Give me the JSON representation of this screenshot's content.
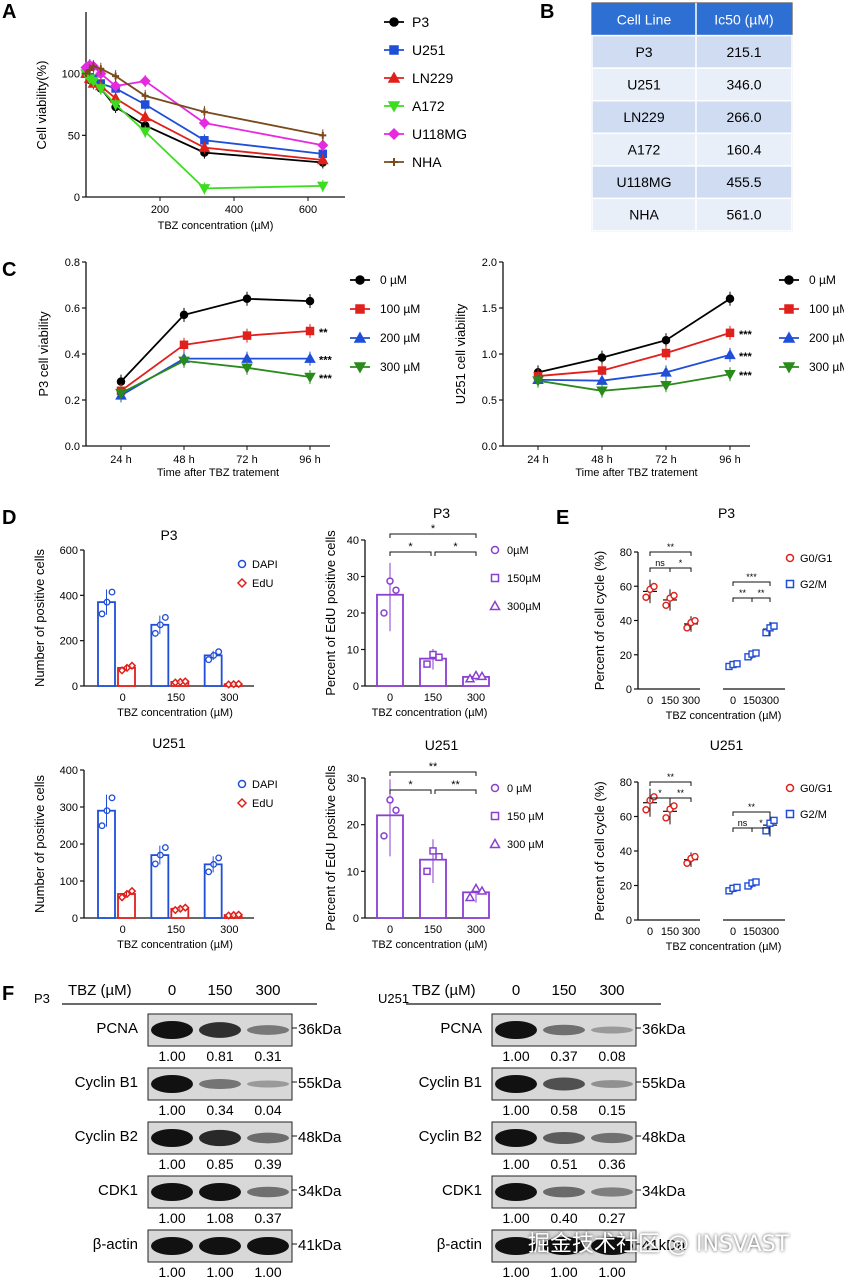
{
  "panels": [
    "A",
    "B",
    "C",
    "D",
    "E",
    "F"
  ],
  "chart_data": [
    {
      "id": "A",
      "type": "line",
      "xlabel": "TBZ concentration (µM)",
      "ylabel": "Cell viability(%)",
      "xlim": [
        0,
        700
      ],
      "ylim": [
        0,
        150
      ],
      "xticks": [
        200,
        400,
        600
      ],
      "yticks": [
        0,
        50,
        100
      ],
      "grid": false,
      "legend": "right",
      "x": [
        0,
        10,
        20,
        40,
        80,
        160,
        320,
        640
      ],
      "series": [
        {
          "name": "P3",
          "color": "#000000",
          "marker": "circle",
          "values": [
            100,
            95,
            93,
            88,
            73,
            58,
            36,
            28
          ]
        },
        {
          "name": "U251",
          "color": "#1f4ed8",
          "marker": "square",
          "values": [
            100,
            97,
            96,
            92,
            88,
            75,
            46,
            35
          ]
        },
        {
          "name": "LN229",
          "color": "#e0201b",
          "marker": "triangle-up",
          "values": [
            100,
            96,
            92,
            90,
            80,
            65,
            40,
            30
          ]
        },
        {
          "name": "A172",
          "color": "#3cdd20",
          "marker": "triangle-down",
          "values": [
            100,
            96,
            94,
            88,
            75,
            53,
            7,
            9
          ]
        },
        {
          "name": "U118MG",
          "color": "#e62ae0",
          "marker": "diamond",
          "values": [
            105,
            107,
            106,
            100,
            90,
            94,
            60,
            42
          ]
        },
        {
          "name": "NHA",
          "color": "#7a4a1c",
          "marker": "plus",
          "values": [
            100,
            103,
            106,
            104,
            98,
            82,
            69,
            50
          ]
        }
      ]
    },
    {
      "id": "B",
      "type": "table",
      "columns": [
        "Cell Line",
        "Ic50 (µM)"
      ],
      "rows": [
        [
          "P3",
          "215.1"
        ],
        [
          "U251",
          "346.0"
        ],
        [
          "LN229",
          "266.0"
        ],
        [
          "A172",
          "160.4"
        ],
        [
          "U118MG",
          "455.5"
        ],
        [
          "NHA",
          "561.0"
        ]
      ]
    },
    {
      "id": "C1",
      "type": "line",
      "xlabel": "Time after TBZ tratement",
      "ylabel": "P3 cell viability",
      "categories": [
        "24 h",
        "48 h",
        "72 h",
        "96 h"
      ],
      "ylim": [
        0,
        0.8
      ],
      "yticks": [
        "0.0",
        "0.2",
        "0.4",
        "0.6",
        "0.8"
      ],
      "legend": "right",
      "series": [
        {
          "name": "0 µM",
          "color": "#000000",
          "marker": "circle",
          "values": [
            0.28,
            0.57,
            0.64,
            0.63
          ],
          "sig": ""
        },
        {
          "name": "100 µM",
          "color": "#e0201b",
          "marker": "square",
          "values": [
            0.24,
            0.44,
            0.48,
            0.5
          ],
          "sig": "**"
        },
        {
          "name": "200 µM",
          "color": "#1f4ed8",
          "marker": "triangle-up",
          "values": [
            0.22,
            0.38,
            0.38,
            0.38
          ],
          "sig": "***"
        },
        {
          "name": "300 µM",
          "color": "#2a8a1c",
          "marker": "triangle-down",
          "values": [
            0.23,
            0.37,
            0.34,
            0.3
          ],
          "sig": "***"
        }
      ]
    },
    {
      "id": "C2",
      "type": "line",
      "xlabel": "Time after TBZ tratement",
      "ylabel": "U251 cell viability",
      "categories": [
        "24 h",
        "48 h",
        "72 h",
        "96 h"
      ],
      "ylim": [
        0,
        2
      ],
      "yticks": [
        "0.0",
        "0.5",
        "1.0",
        "1.5",
        "2.0"
      ],
      "legend": "right",
      "series": [
        {
          "name": "0 µM",
          "color": "#000000",
          "marker": "circle",
          "values": [
            0.8,
            0.96,
            1.15,
            1.6
          ],
          "sig": ""
        },
        {
          "name": "100 µM",
          "color": "#e0201b",
          "marker": "square",
          "values": [
            0.76,
            0.82,
            1.01,
            1.23
          ],
          "sig": "***"
        },
        {
          "name": "200 µM",
          "color": "#1f4ed8",
          "marker": "triangle-up",
          "values": [
            0.72,
            0.71,
            0.8,
            0.99
          ],
          "sig": "***"
        },
        {
          "name": "300 µM",
          "color": "#2a8a1c",
          "marker": "triangle-down",
          "values": [
            0.71,
            0.6,
            0.66,
            0.78
          ],
          "sig": "***"
        }
      ]
    },
    {
      "id": "D1",
      "type": "bar",
      "title": "P3",
      "xlabel": "TBZ concentration (µM)",
      "ylabel": "Number of positive cells",
      "categories": [
        "0",
        "150",
        "300"
      ],
      "ylim": [
        0,
        600
      ],
      "yticks": [
        0,
        200,
        400,
        600
      ],
      "legend": "top-right",
      "series": [
        {
          "name": "DAPI",
          "color": "#1f4ed8",
          "values": [
            370,
            270,
            135
          ]
        },
        {
          "name": "EdU",
          "color": "#e0201b",
          "values": [
            80,
            18,
            8
          ]
        }
      ]
    },
    {
      "id": "D2",
      "type": "bar",
      "title": "P3",
      "xlabel": "TBZ concentration (µM)",
      "ylabel": "Percent of EdU positive cells",
      "categories": [
        "0",
        "150",
        "300"
      ],
      "ylim": [
        0,
        40
      ],
      "yticks": [
        0,
        10,
        20,
        30,
        40
      ],
      "legend": "right",
      "legend_labels": [
        "0µM",
        "150µM",
        "300µM"
      ],
      "color": "#8a3fd1",
      "values": [
        25,
        7.5,
        2.5
      ],
      "sig": [
        "*",
        "*",
        "*"
      ]
    },
    {
      "id": "E1",
      "type": "scatter",
      "title": "P3",
      "xlabel": "TBZ concentration (µM)",
      "ylabel": "Percent of cell cycle (%)",
      "categories": [
        "0",
        "150",
        "300",
        "0",
        "150",
        "300"
      ],
      "ylim": [
        0,
        80
      ],
      "yticks": [
        0,
        20,
        40,
        60,
        80
      ],
      "legend": "right",
      "series": [
        {
          "name": "G0/G1",
          "color": "#e0201b",
          "values": [
            57,
            52,
            38
          ]
        },
        {
          "name": "G2/M",
          "color": "#1f4ed8",
          "values": [
            14,
            20,
            35
          ]
        }
      ],
      "sig_g1": [
        "ns",
        "*",
        "**"
      ],
      "sig_g2": [
        "**",
        "**",
        "***"
      ]
    },
    {
      "id": "D3",
      "type": "bar",
      "title": "U251",
      "xlabel": "TBZ concentration (µM)",
      "ylabel": "Number of positive cells",
      "categories": [
        "0",
        "150",
        "300"
      ],
      "ylim": [
        0,
        400
      ],
      "yticks": [
        0,
        100,
        200,
        300,
        400
      ],
      "legend": "top-right",
      "series": [
        {
          "name": "DAPI",
          "color": "#1f4ed8",
          "values": [
            290,
            170,
            145
          ]
        },
        {
          "name": "EdU",
          "color": "#e0201b",
          "values": [
            65,
            25,
            8
          ]
        }
      ]
    },
    {
      "id": "D4",
      "type": "bar",
      "title": "U251",
      "xlabel": "TBZ concentration (µM)",
      "ylabel": "Percent of EdU positive cells",
      "categories": [
        "0",
        "150",
        "300"
      ],
      "ylim": [
        0,
        30
      ],
      "yticks": [
        0,
        10,
        20,
        30
      ],
      "legend": "right",
      "legend_labels": [
        "0 µM",
        "150 µM",
        "300 µM"
      ],
      "color": "#8a3fd1",
      "values": [
        22,
        12.5,
        5.5
      ],
      "sig": [
        "*",
        "**",
        "**"
      ]
    },
    {
      "id": "E2",
      "type": "scatter",
      "title": "U251",
      "xlabel": "TBZ concentration (µM)",
      "ylabel": "Percent of cell cycle (%)",
      "categories": [
        "0",
        "150",
        "300",
        "0",
        "150",
        "300"
      ],
      "ylim": [
        0,
        80
      ],
      "yticks": [
        0,
        20,
        40,
        60,
        80
      ],
      "legend": "right",
      "series": [
        {
          "name": "G0/G1",
          "color": "#e0201b",
          "values": [
            68,
            63,
            35
          ]
        },
        {
          "name": "G2/M",
          "color": "#1f4ed8",
          "values": [
            18,
            21,
            55
          ]
        }
      ],
      "sig_g1": [
        "*",
        "**",
        "**"
      ],
      "sig_g2": [
        "ns",
        "*",
        "**"
      ]
    }
  ],
  "western": {
    "header": "TBZ (µM)",
    "lanes": [
      "0",
      "150",
      "300"
    ],
    "blots": [
      {
        "cell": "P3",
        "proteins": [
          {
            "name": "PCNA",
            "kda": "36kDa",
            "values": [
              "1.00",
              "0.81",
              "0.31"
            ]
          },
          {
            "name": "Cyclin B1",
            "kda": "55kDa",
            "values": [
              "1.00",
              "0.34",
              "0.04"
            ]
          },
          {
            "name": "Cyclin B2",
            "kda": "48kDa",
            "values": [
              "1.00",
              "0.85",
              "0.39"
            ]
          },
          {
            "name": "CDK1",
            "kda": "34kDa",
            "values": [
              "1.00",
              "1.08",
              "0.37"
            ]
          },
          {
            "name": "β-actin",
            "kda": "41kDa",
            "values": [
              "1.00",
              "1.00",
              "1.00"
            ]
          }
        ]
      },
      {
        "cell": "U251",
        "proteins": [
          {
            "name": "PCNA",
            "kda": "36kDa",
            "values": [
              "1.00",
              "0.37",
              "0.08"
            ]
          },
          {
            "name": "Cyclin B1",
            "kda": "55kDa",
            "values": [
              "1.00",
              "0.58",
              "0.15"
            ]
          },
          {
            "name": "Cyclin B2",
            "kda": "48kDa",
            "values": [
              "1.00",
              "0.51",
              "0.36"
            ]
          },
          {
            "name": "CDK1",
            "kda": "34kDa",
            "values": [
              "1.00",
              "0.40",
              "0.27"
            ]
          },
          {
            "name": "β-actin",
            "kda": "41kDa",
            "values": [
              "1.00",
              "1.00",
              "1.00"
            ]
          }
        ]
      }
    ]
  },
  "watermark": "掘金技术社区 @ INSVAST"
}
